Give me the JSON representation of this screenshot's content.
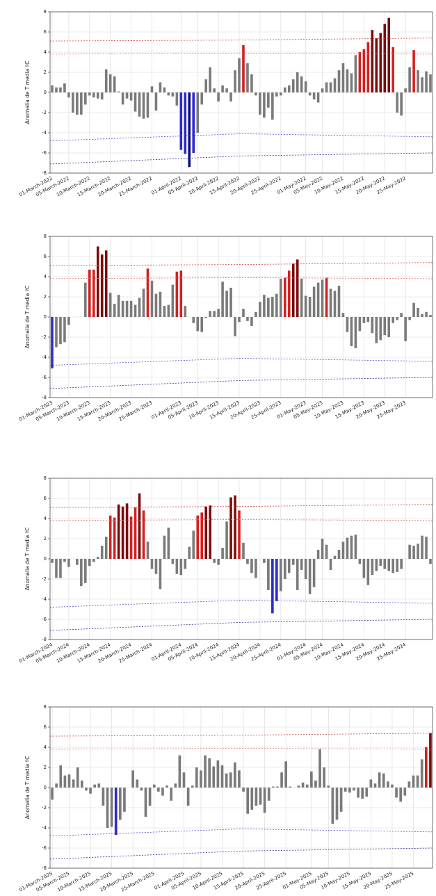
{
  "chart_data": [
    {
      "type": "bar",
      "ylabel": "Anomalia de T media ºC",
      "categories": [
        "01-March-2022",
        null,
        null,
        null,
        "05-March-2022",
        null,
        null,
        null,
        null,
        "10-March-2022",
        null,
        null,
        null,
        null,
        "15-March-2022",
        null,
        null,
        null,
        null,
        "20-March-2022",
        null,
        null,
        null,
        null,
        "25-March-2022",
        null,
        null,
        null,
        null,
        null,
        null,
        "01-April-2022",
        null,
        null,
        null,
        "05-April-2022",
        null,
        null,
        null,
        null,
        "10-April-2022",
        null,
        null,
        null,
        null,
        "15-April-2022",
        null,
        null,
        null,
        null,
        "20-April-2022",
        null,
        null,
        null,
        null,
        "25-April-2022",
        null,
        null,
        null,
        null,
        null,
        "01-May-2022",
        null,
        null,
        null,
        "05-May-2022",
        null,
        null,
        null,
        null,
        "10-May-2022",
        null,
        null,
        null,
        null,
        "15-May-2022",
        null,
        null,
        null,
        null,
        "20-May-2022",
        null,
        null,
        null,
        null,
        "25-May-2022",
        null,
        null,
        null,
        null,
        null,
        null
      ],
      "values": [
        0.7,
        0.5,
        0.5,
        0.9,
        -0.5,
        -2.0,
        -2.2,
        -2.2,
        -1.2,
        -0.3,
        -0.5,
        -0.6,
        -0.7,
        2.3,
        1.8,
        1.6,
        0.1,
        -1.2,
        -0.6,
        -0.8,
        -1.9,
        -2.4,
        -2.6,
        -2.5,
        0.6,
        -1.8,
        1.0,
        0.5,
        -0.3,
        -0.4,
        -1.3,
        -5.7,
        -6.1,
        -7.4,
        -6.0,
        -4.0,
        -1.2,
        1.3,
        2.5,
        0.4,
        -0.9,
        0.7,
        0.4,
        -0.9,
        2.2,
        3.4,
        4.7,
        2.9,
        1.8,
        -0.3,
        -2.2,
        -2.5,
        -1.5,
        -2.7,
        -0.4,
        -0.3,
        0.5,
        0.7,
        1.3,
        2.0,
        1.6,
        1.1,
        -0.3,
        -0.7,
        -1.0,
        0.4,
        1.0,
        1.0,
        1.4,
        2.2,
        2.9,
        2.3,
        1.9,
        3.7,
        4.0,
        4.3,
        5.0,
        6.2,
        5.4,
        5.9,
        6.8,
        7.4,
        4.5,
        -2.0,
        -2.3,
        0.4,
        2.5,
        4.2,
        2.2,
        1.5,
        2.1,
        1.8
      ],
      "ylim": [
        -8,
        8
      ],
      "yticks": [
        -8,
        -6,
        -4,
        -2,
        0,
        2,
        4,
        6,
        8
      ],
      "grid": true,
      "bar_colors": {
        "normal": "#7a7a7a",
        "warm": "#d42020",
        "hot": "#7a0c0c",
        "cold": "#2a2ad0",
        "very_cold": "#0a0a80"
      },
      "thresholds": [
        {
          "color": "#d04040",
          "values": [
            5.1,
            5.2,
            5.4
          ]
        },
        {
          "color": "#e07070",
          "values": [
            3.8,
            3.9,
            3.8
          ]
        },
        {
          "color": "#5050d0",
          "values": [
            -4.8,
            -4.1,
            -4.4
          ]
        },
        {
          "color": "#303090",
          "values": [
            -7.1,
            -6.3,
            -6.0
          ]
        }
      ]
    },
    {
      "type": "bar",
      "ylabel": "Anomalia de T media ºC",
      "categories": [
        "01-March-2023",
        null,
        null,
        null,
        "05-March-2023",
        null,
        null,
        null,
        null,
        "10-March-2023",
        null,
        null,
        null,
        null,
        "15-March-2023",
        null,
        null,
        null,
        null,
        "20-March-2023",
        null,
        null,
        null,
        null,
        "25-March-2023",
        null,
        null,
        null,
        null,
        null,
        null,
        "01-April-2023",
        null,
        null,
        null,
        "05-April-2023",
        null,
        null,
        null,
        null,
        "10-April-2023",
        null,
        null,
        null,
        null,
        "15-April-2023",
        null,
        null,
        null,
        null,
        "20-April-2023",
        null,
        null,
        null,
        null,
        "25-April-2023",
        null,
        null,
        null,
        null,
        null,
        "01-May-2023",
        null,
        null,
        null,
        "05-May-2023",
        null,
        null,
        null,
        null,
        "10-May-2023",
        null,
        null,
        null,
        null,
        "15-May-2023",
        null,
        null,
        null,
        null,
        "20-May-2023",
        null,
        null,
        null,
        null,
        "25-May-2023",
        null,
        null,
        null,
        null,
        null,
        null
      ],
      "values": [
        -5.1,
        -3.0,
        -2.7,
        -2.5,
        -0.8,
        0,
        0,
        0,
        3.4,
        4.7,
        4.7,
        7.0,
        6.2,
        6.6,
        2.4,
        1.3,
        2.2,
        1.6,
        1.6,
        1.6,
        1.2,
        1.9,
        2.8,
        4.8,
        3.6,
        2.3,
        2.5,
        1.1,
        1.2,
        3.2,
        4.5,
        4.6,
        1.1,
        0,
        -0.6,
        -1.4,
        -1.5,
        -0.1,
        0.6,
        0.6,
        0.8,
        3.5,
        2.6,
        2.9,
        -1.9,
        -0.5,
        0.8,
        -0.4,
        -0.9,
        0.5,
        1.5,
        2.2,
        1.9,
        2.0,
        2.3,
        3.8,
        3.9,
        4.6,
        5.3,
        5.7,
        3.8,
        2.1,
        2.0,
        3.0,
        3.4,
        3.7,
        3.9,
        2.8,
        2.6,
        3.1,
        0.4,
        -1.5,
        -2.9,
        -3.1,
        -1.4,
        -0.6,
        -0.5,
        -1.6,
        -2.6,
        -2.3,
        -1.8,
        -2.0,
        -0.6,
        -0.3,
        0.4,
        -2.4,
        -0.3,
        1.4,
        0.9,
        0.3,
        0.5,
        0.2
      ],
      "ylim": [
        -8,
        8
      ],
      "yticks": [
        -8,
        -6,
        -4,
        -2,
        0,
        2,
        4,
        6,
        8
      ],
      "grid": true,
      "bar_colors": {
        "normal": "#7a7a7a",
        "warm": "#d42020",
        "hot": "#7a0c0c",
        "cold": "#2a2ad0",
        "very_cold": "#0a0a80"
      },
      "thresholds": [
        {
          "color": "#d04040",
          "values": [
            5.1,
            5.2,
            5.4
          ]
        },
        {
          "color": "#e07070",
          "values": [
            3.8,
            3.9,
            3.8
          ]
        },
        {
          "color": "#5050d0",
          "values": [
            -4.8,
            -4.1,
            -4.4
          ]
        },
        {
          "color": "#303090",
          "values": [
            -7.1,
            -6.3,
            -6.0
          ]
        }
      ]
    },
    {
      "type": "bar",
      "ylabel": "Anomalia de T media ºC",
      "categories": [
        "01-March-2024",
        null,
        null,
        null,
        "05-March-2024",
        null,
        null,
        null,
        null,
        "10-March-2024",
        null,
        null,
        null,
        null,
        "15-March-2024",
        null,
        null,
        null,
        null,
        "20-March-2024",
        null,
        null,
        null,
        null,
        "25-March-2024",
        null,
        null,
        null,
        null,
        null,
        null,
        "01-April-2024",
        null,
        null,
        null,
        "05-April-2024",
        null,
        null,
        null,
        null,
        "10-April-2024",
        null,
        null,
        null,
        null,
        "15-April-2024",
        null,
        null,
        null,
        null,
        "20-April-2024",
        null,
        null,
        null,
        null,
        "25-April-2024",
        null,
        null,
        null,
        null,
        null,
        "01-May-2024",
        null,
        null,
        null,
        "05-May-2024",
        null,
        null,
        null,
        null,
        "10-May-2024",
        null,
        null,
        null,
        null,
        "15-May-2024",
        null,
        null,
        null,
        null,
        "20-May-2024",
        null,
        null,
        null,
        null,
        "25-May-2024",
        null,
        null,
        null,
        null,
        null,
        null
      ],
      "values": [
        -0.4,
        -1.9,
        -1.9,
        -0.3,
        -0.8,
        0,
        -0.6,
        -2.7,
        -2.4,
        -0.7,
        -0.3,
        0.2,
        1.3,
        2.2,
        4.3,
        4.1,
        5.4,
        5.2,
        5.5,
        4.2,
        5.1,
        6.5,
        4.8,
        1.7,
        -1.0,
        -1.5,
        -3.0,
        2.3,
        3.1,
        -0.5,
        -1.5,
        -1.6,
        -1.0,
        1.2,
        2.8,
        4.3,
        4.6,
        5.2,
        5.3,
        -0.4,
        -0.6,
        1.1,
        3.7,
        6.1,
        6.3,
        4.8,
        1.6,
        -0.5,
        -1.4,
        -1.9,
        0,
        -0.4,
        -3.1,
        -5.4,
        -4.2,
        -3.2,
        -2.0,
        -1.4,
        -0.6,
        -3.1,
        -1.1,
        -2.0,
        -3.5,
        -2.8,
        0.9,
        2.0,
        1.4,
        -1.1,
        0.3,
        0.9,
        1.7,
        2.1,
        2.3,
        2.4,
        -0.5,
        -1.9,
        -2.6,
        -1.6,
        -1.2,
        -0.7,
        -1.0,
        -1.2,
        -1.4,
        -1.3,
        -1.0,
        0,
        1.4,
        1.3,
        1.5,
        2.3,
        2.2,
        -0.5
      ],
      "ylim": [
        -8,
        8
      ],
      "yticks": [
        -8,
        -6,
        -4,
        -2,
        0,
        2,
        4,
        6,
        8
      ],
      "grid": true,
      "bar_colors": {
        "normal": "#7a7a7a",
        "warm": "#d42020",
        "hot": "#7a0c0c",
        "cold": "#2a2ad0",
        "very_cold": "#0a0a80"
      },
      "thresholds": [
        {
          "color": "#d04040",
          "values": [
            5.1,
            5.2,
            5.4
          ]
        },
        {
          "color": "#e07070",
          "values": [
            3.8,
            3.9,
            3.8
          ]
        },
        {
          "color": "#5050d0",
          "values": [
            -4.8,
            -4.1,
            -4.4
          ]
        },
        {
          "color": "#303090",
          "values": [
            -7.1,
            -6.3,
            -6.0
          ]
        }
      ]
    },
    {
      "type": "bar",
      "ylabel": "Anomalia de T media ºC",
      "categories": [
        "01-March-2025",
        null,
        null,
        null,
        "05-March-2025",
        null,
        null,
        null,
        null,
        "10-March-2025",
        null,
        null,
        null,
        null,
        "15-March-2025",
        null,
        null,
        null,
        null,
        "20-March-2025",
        null,
        null,
        null,
        null,
        "25-March-2025",
        null,
        null,
        null,
        null,
        null,
        null,
        "01-April-2025",
        null,
        null,
        null,
        "05-April-2025",
        null,
        null,
        null,
        null,
        "10-April-2025",
        null,
        null,
        null,
        null,
        "15-April-2025",
        null,
        null,
        null,
        null,
        "20-April-2025",
        null,
        null,
        null,
        null,
        "25-April-2025",
        null,
        null,
        null,
        null,
        null,
        "01-May-2025",
        null,
        null,
        null,
        "05-May-2025",
        null,
        null,
        null,
        null,
        "10-May-2025",
        null,
        null,
        null,
        null,
        "15-May-2025",
        null,
        null,
        null,
        null,
        "20-May-2025",
        null,
        null,
        null,
        null,
        "25-May-2025",
        null,
        null,
        null,
        null
      ],
      "values": [
        -1.2,
        0.4,
        2.2,
        1.2,
        1.3,
        0.8,
        2.0,
        0.7,
        -0.3,
        -0.6,
        0.3,
        0.4,
        -1.8,
        -4.0,
        -3.9,
        -4.7,
        -3.2,
        -2.4,
        0,
        1.7,
        0.8,
        -0.3,
        -2.9,
        -1.8,
        0.3,
        -0.4,
        -0.8,
        0.2,
        -1.3,
        0.4,
        3.2,
        1.5,
        -1.8,
        0.2,
        2.0,
        1.7,
        3.2,
        2.9,
        2.1,
        2.7,
        2.2,
        1.4,
        1.5,
        2.5,
        1.7,
        -0.4,
        -2.6,
        -2.2,
        -1.8,
        -1.7,
        -2.5,
        -1.3,
        0.1,
        0.1,
        1.5,
        2.6,
        0.1,
        0,
        0.2,
        0.5,
        0.3,
        1.6,
        0.7,
        3.8,
        2.0,
        0.2,
        -3.6,
        -3.2,
        -2.4,
        -0.4,
        -0.5,
        -0.3,
        -1.0,
        -1.1,
        -0.9,
        0.8,
        0.4,
        1.5,
        1.4,
        0.6,
        0.3,
        -1.0,
        -1.4,
        -0.8,
        0.6,
        1.2,
        1.2,
        2.8,
        4.0,
        5.4
      ],
      "ylim": [
        -8,
        8
      ],
      "yticks": [
        -8,
        -6,
        -4,
        -2,
        0,
        2,
        4,
        6,
        8
      ],
      "grid": true,
      "bar_colors": {
        "normal": "#7a7a7a",
        "warm": "#d42020",
        "hot": "#7a0c0c",
        "cold": "#2a2ad0",
        "very_cold": "#0a0a80"
      },
      "thresholds": [
        {
          "color": "#d04040",
          "values": [
            5.1,
            5.2,
            5.4
          ]
        },
        {
          "color": "#e07070",
          "values": [
            3.8,
            3.9,
            3.8
          ]
        },
        {
          "color": "#5050d0",
          "values": [
            -4.8,
            -4.1,
            -4.4
          ]
        },
        {
          "color": "#303090",
          "values": [
            -7.1,
            -6.3,
            -6.0
          ]
        }
      ]
    }
  ]
}
